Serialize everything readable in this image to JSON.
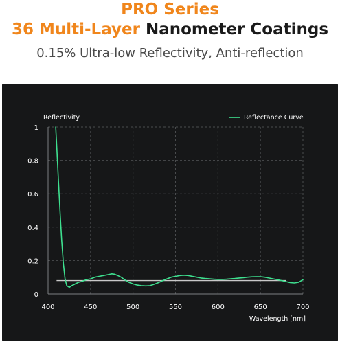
{
  "header": {
    "line1": "PRO Series",
    "line2_accent": "36 Multi-Layer",
    "line2_dark": "Nanometer Coatings",
    "subtitle": "0.15% Ultra-low Reflectivity, Anti-reflection"
  },
  "colors": {
    "accent": "#f0861c",
    "curve": "#3ee08f",
    "reference": "#c9c9c9",
    "panel": "#161718",
    "grid": "#4a4c4e"
  },
  "chart_data": {
    "type": "line",
    "ylabel": "Reflectivity",
    "xlabel": "Wavelength [nm]",
    "xlim": [
      400,
      700
    ],
    "ylim": [
      0,
      1
    ],
    "x_ticks": [
      400,
      450,
      500,
      550,
      600,
      650,
      700
    ],
    "y_ticks": [
      0,
      0.2,
      0.4,
      0.6,
      0.8,
      1
    ],
    "grid": true,
    "legend_position": "top-right",
    "series": [
      {
        "name": "Reflectance Curve",
        "x": [
          409,
          410,
          412,
          414,
          416,
          418,
          420,
          422,
          425,
          428,
          432,
          436,
          440,
          445,
          450,
          455,
          460,
          465,
          470,
          475,
          478,
          482,
          486,
          490,
          495,
          500,
          505,
          510,
          515,
          520,
          525,
          530,
          535,
          540,
          545,
          550,
          555,
          560,
          565,
          570,
          575,
          580,
          585,
          590,
          595,
          600,
          605,
          610,
          615,
          620,
          625,
          630,
          635,
          640,
          645,
          650,
          655,
          660,
          665,
          670,
          675,
          680,
          685,
          690,
          695,
          700
        ],
        "y": [
          1.0,
          0.9,
          0.7,
          0.5,
          0.32,
          0.18,
          0.09,
          0.05,
          0.04,
          0.05,
          0.06,
          0.07,
          0.075,
          0.085,
          0.09,
          0.1,
          0.105,
          0.11,
          0.115,
          0.12,
          0.118,
          0.11,
          0.1,
          0.085,
          0.07,
          0.06,
          0.053,
          0.05,
          0.048,
          0.05,
          0.058,
          0.068,
          0.08,
          0.09,
          0.1,
          0.105,
          0.11,
          0.112,
          0.11,
          0.105,
          0.1,
          0.095,
          0.092,
          0.09,
          0.088,
          0.087,
          0.087,
          0.088,
          0.09,
          0.092,
          0.095,
          0.097,
          0.1,
          0.102,
          0.103,
          0.103,
          0.1,
          0.095,
          0.09,
          0.085,
          0.08,
          0.074,
          0.068,
          0.066,
          0.07,
          0.085
        ]
      }
    ],
    "reference_line": {
      "x": [
        410,
        680
      ],
      "y": 0.08
    }
  }
}
